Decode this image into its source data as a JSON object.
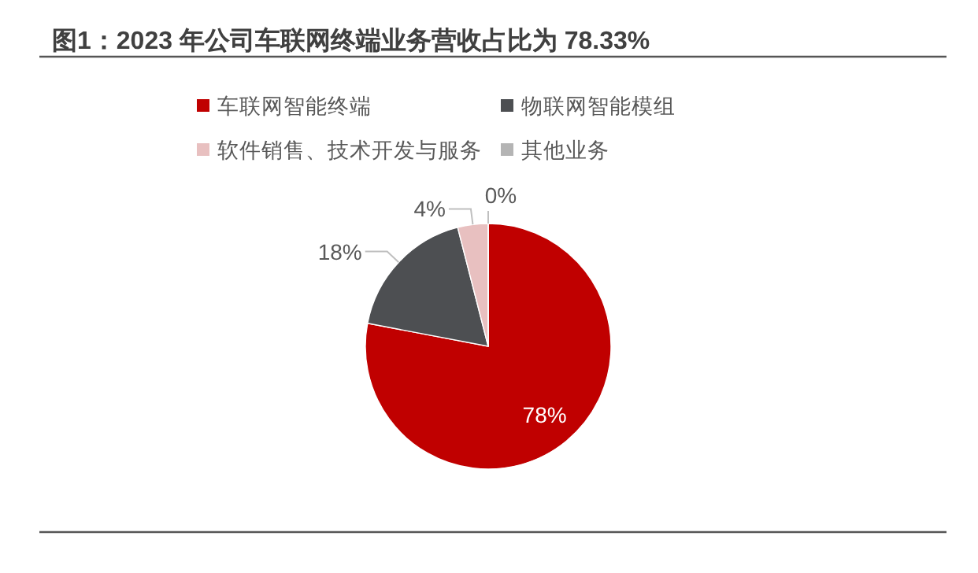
{
  "chart_data": {
    "type": "pie",
    "title": "图1：2023 年公司车联网终端业务营收占比为 78.33%",
    "categories": [
      "车联网智能终端",
      "物联网智能模组",
      "软件销售、技术开发与服务",
      "其他业务"
    ],
    "values": [
      78,
      18,
      4,
      0
    ],
    "value_labels": [
      "78%",
      "18%",
      "4%",
      "0%"
    ],
    "colors": [
      "#c00000",
      "#4d4f52",
      "#e8c0c0",
      "#b4b4b4"
    ],
    "legend": "top"
  }
}
